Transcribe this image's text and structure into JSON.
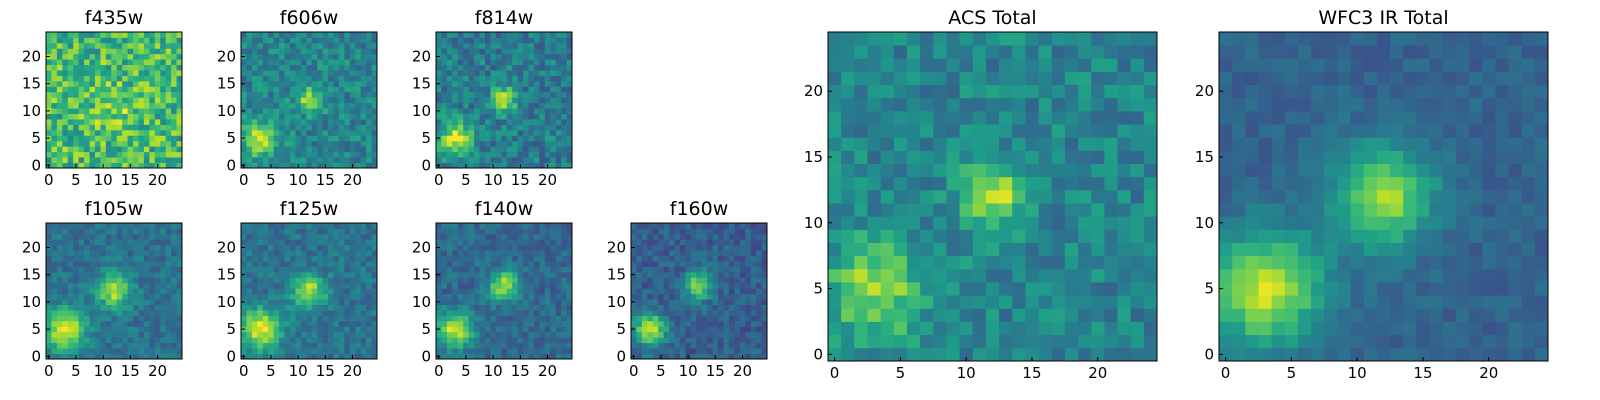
{
  "figure": {
    "colormap": "viridis",
    "image_size": [
      25,
      25
    ],
    "background": "#ffffff"
  },
  "chart_data": [
    {
      "type": "heatmap",
      "title": "f435w",
      "xticks": [
        "0",
        "5",
        "10",
        "15",
        "20"
      ],
      "yticks": [
        "0",
        "5",
        "10",
        "15",
        "20"
      ],
      "xlim": [
        0,
        25
      ],
      "ylim": [
        0,
        25
      ],
      "grid": false,
      "sources": [
        {
          "x": 12,
          "y": 11,
          "amplitude": 0.15,
          "sigma": 3
        }
      ],
      "background_level": 0.68,
      "noise": 0.22
    },
    {
      "type": "heatmap",
      "title": "f606w",
      "xticks": [
        "0",
        "5",
        "10",
        "15",
        "20"
      ],
      "yticks": [
        "0",
        "5",
        "10",
        "15",
        "20"
      ],
      "xlim": [
        0,
        25
      ],
      "ylim": [
        0,
        25
      ],
      "grid": false,
      "sources": [
        {
          "x": 12,
          "y": 12,
          "amplitude": 0.45,
          "sigma": 1.6
        },
        {
          "x": 3,
          "y": 5,
          "amplitude": 0.5,
          "sigma": 2.2
        }
      ],
      "background_level": 0.45,
      "noise": 0.14
    },
    {
      "type": "heatmap",
      "title": "f814w",
      "xticks": [
        "0",
        "5",
        "10",
        "15",
        "20"
      ],
      "yticks": [
        "0",
        "5",
        "10",
        "15",
        "20"
      ],
      "xlim": [
        0,
        25
      ],
      "ylim": [
        0,
        25
      ],
      "grid": false,
      "sources": [
        {
          "x": 12,
          "y": 12,
          "amplitude": 0.5,
          "sigma": 1.6
        },
        {
          "x": 3,
          "y": 5,
          "amplitude": 0.5,
          "sigma": 2.2
        }
      ],
      "background_level": 0.42,
      "noise": 0.15
    },
    {
      "type": "heatmap",
      "title": "f105w",
      "xticks": [
        "0",
        "5",
        "10",
        "15",
        "20"
      ],
      "yticks": [
        "0",
        "5",
        "10",
        "15",
        "20"
      ],
      "xlim": [
        0,
        25
      ],
      "ylim": [
        0,
        25
      ],
      "grid": false,
      "sources": [
        {
          "x": 12,
          "y": 12,
          "amplitude": 0.5,
          "sigma": 2.2
        },
        {
          "x": 3,
          "y": 5,
          "amplitude": 0.6,
          "sigma": 2.6
        }
      ],
      "background_level": 0.38,
      "noise": 0.1
    },
    {
      "type": "heatmap",
      "title": "f125w",
      "xticks": [
        "0",
        "5",
        "10",
        "15",
        "20"
      ],
      "yticks": [
        "0",
        "5",
        "10",
        "15",
        "20"
      ],
      "xlim": [
        0,
        25
      ],
      "ylim": [
        0,
        25
      ],
      "grid": false,
      "sources": [
        {
          "x": 12,
          "y": 12,
          "amplitude": 0.5,
          "sigma": 2.2
        },
        {
          "x": 3,
          "y": 5,
          "amplitude": 0.6,
          "sigma": 2.6
        }
      ],
      "background_level": 0.38,
      "noise": 0.1
    },
    {
      "type": "heatmap",
      "title": "f140w",
      "xticks": [
        "0",
        "5",
        "10",
        "15",
        "20"
      ],
      "yticks": [
        "0",
        "5",
        "10",
        "15",
        "20"
      ],
      "xlim": [
        0,
        25
      ],
      "ylim": [
        0,
        25
      ],
      "grid": false,
      "sources": [
        {
          "x": 12,
          "y": 13,
          "amplitude": 0.55,
          "sigma": 1.9
        },
        {
          "x": 3,
          "y": 5,
          "amplitude": 0.6,
          "sigma": 2.3
        }
      ],
      "background_level": 0.34,
      "noise": 0.1
    },
    {
      "type": "heatmap",
      "title": "f160w",
      "xticks": [
        "0",
        "5",
        "10",
        "15",
        "20"
      ],
      "yticks": [
        "0",
        "5",
        "10",
        "15",
        "20"
      ],
      "xlim": [
        0,
        25
      ],
      "ylim": [
        0,
        25
      ],
      "grid": false,
      "sources": [
        {
          "x": 12,
          "y": 13,
          "amplitude": 0.55,
          "sigma": 1.8
        },
        {
          "x": 3,
          "y": 5,
          "amplitude": 0.6,
          "sigma": 2.1
        }
      ],
      "background_level": 0.3,
      "noise": 0.1
    },
    {
      "type": "heatmap",
      "title": "ACS Total",
      "xticks": [
        "0",
        "5",
        "10",
        "15",
        "20"
      ],
      "yticks": [
        "0",
        "5",
        "10",
        "15",
        "20"
      ],
      "xlim": [
        0,
        25
      ],
      "ylim": [
        0,
        25
      ],
      "grid": false,
      "sources": [
        {
          "x": 12,
          "y": 12,
          "amplitude": 0.45,
          "sigma": 1.8
        },
        {
          "x": 3,
          "y": 5,
          "amplitude": 0.4,
          "sigma": 2.6
        }
      ],
      "background_level": 0.45,
      "noise": 0.13
    },
    {
      "type": "heatmap",
      "title": "WFC3 IR Total",
      "xticks": [
        "0",
        "5",
        "10",
        "15",
        "20"
      ],
      "yticks": [
        "0",
        "5",
        "10",
        "15",
        "20"
      ],
      "xlim": [
        0,
        25
      ],
      "ylim": [
        0,
        25
      ],
      "grid": false,
      "sources": [
        {
          "x": 12,
          "y": 12,
          "amplitude": 0.55,
          "sigma": 2.6
        },
        {
          "x": 3,
          "y": 5,
          "amplitude": 0.6,
          "sigma": 3.0
        }
      ],
      "background_level": 0.32,
      "noise": 0.06
    }
  ]
}
